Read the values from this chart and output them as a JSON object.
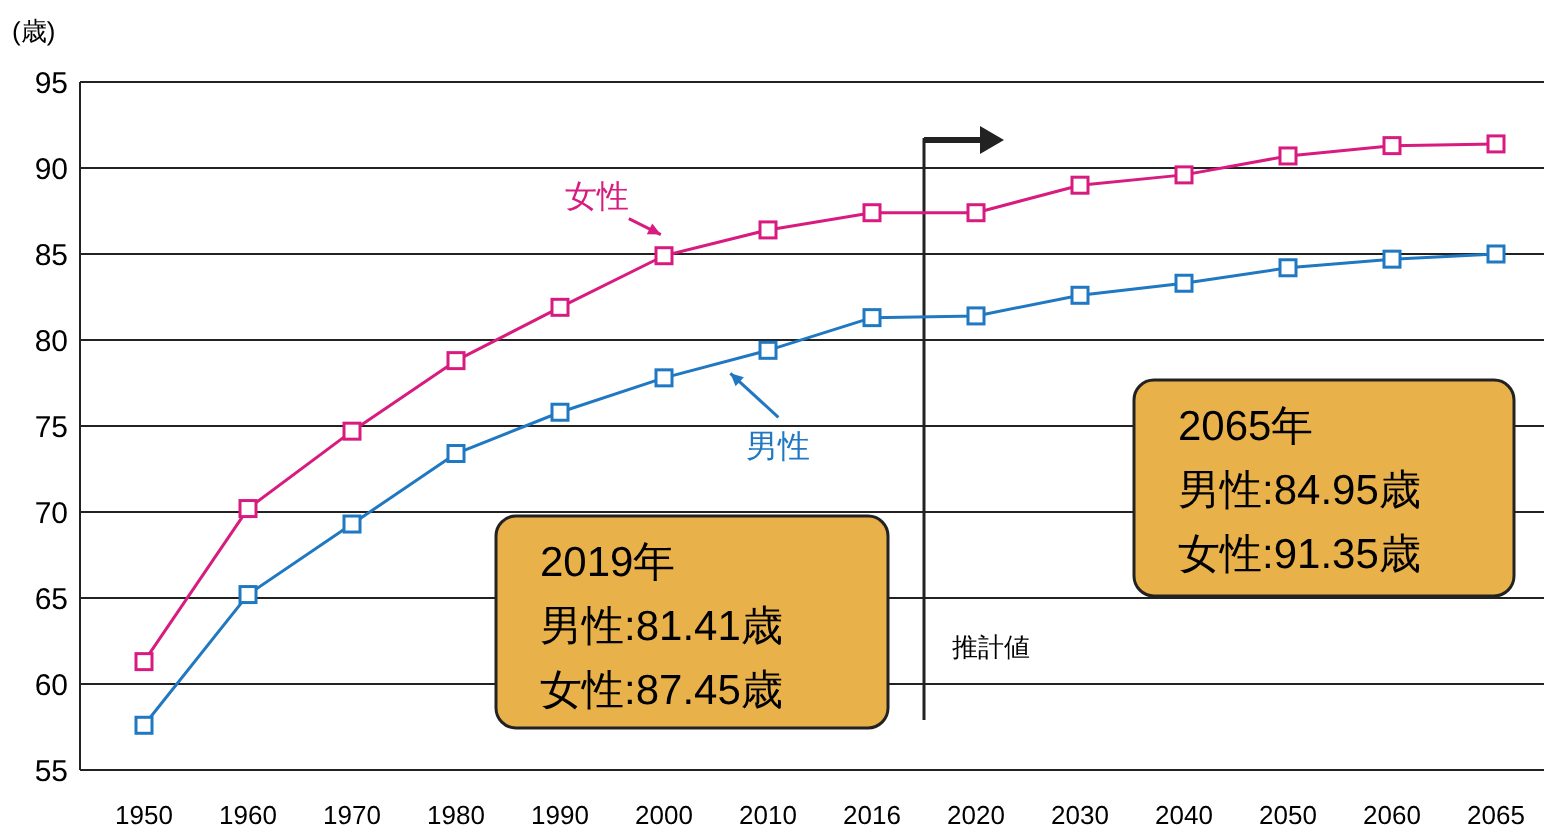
{
  "chart_data": {
    "type": "line",
    "ylabel": "(歳)",
    "categories": [
      "1950",
      "1960",
      "1970",
      "1980",
      "1990",
      "2000",
      "2010",
      "2016",
      "2020",
      "2030",
      "2040",
      "2050",
      "2060",
      "2065"
    ],
    "series": [
      {
        "name": "女性",
        "color": "#d81b7f",
        "values": [
          61.3,
          70.2,
          74.7,
          78.8,
          81.9,
          84.9,
          86.4,
          87.4,
          87.4,
          89.0,
          89.6,
          90.7,
          91.3,
          91.4
        ]
      },
      {
        "name": "男性",
        "color": "#1f78c1",
        "values": [
          57.6,
          65.2,
          69.3,
          73.4,
          75.8,
          77.8,
          79.4,
          81.3,
          81.4,
          82.6,
          83.3,
          84.2,
          84.7,
          85.0
        ]
      }
    ],
    "ylim": [
      55,
      95
    ],
    "yticks": [
      55,
      60,
      65,
      70,
      75,
      80,
      85,
      90,
      95
    ],
    "grid": "y",
    "marker": "square",
    "line_style": "solid",
    "ref_lines": [
      {
        "axis": "x",
        "value": "2020",
        "label": "推計値"
      }
    ],
    "annotations": [
      "2019年",
      "男性:81.41歳",
      "女性:87.45歳",
      "2065年",
      "男性:84.95歳",
      "女性:91.35歳"
    ]
  }
}
